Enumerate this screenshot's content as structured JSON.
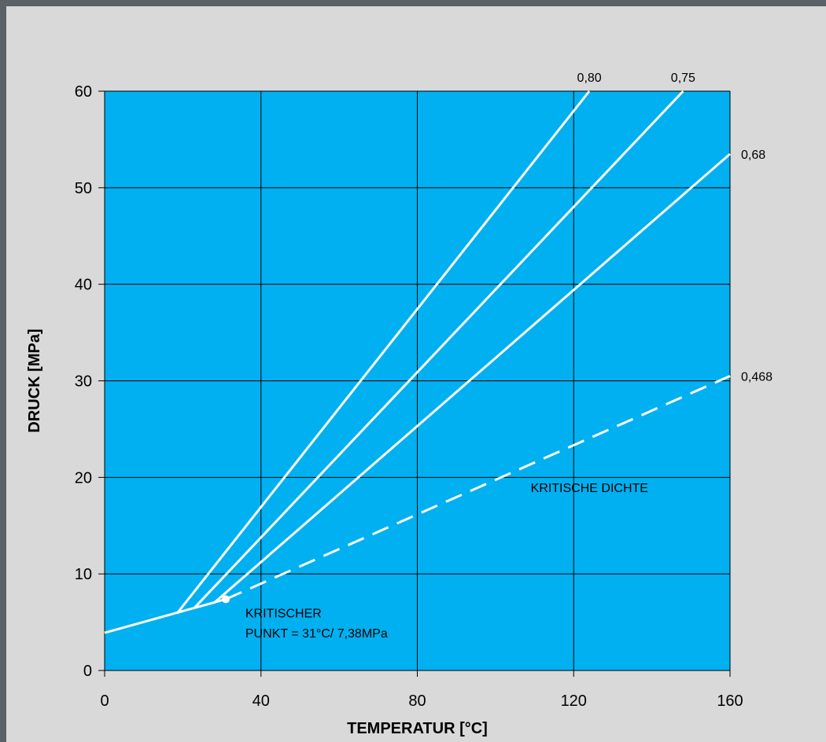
{
  "chart_data": {
    "type": "line",
    "title": "",
    "xlabel": "TEMPERATUR [°C]",
    "ylabel": "DRUCK [MPa]",
    "xlim": [
      0,
      160
    ],
    "ylim": [
      0,
      60
    ],
    "x_ticks": [
      0,
      40,
      80,
      120,
      160
    ],
    "y_ticks": [
      0,
      10,
      20,
      30,
      40,
      50,
      60
    ],
    "x_tick_labels": [
      "0",
      "40",
      "80",
      "120",
      "160"
    ],
    "y_tick_labels": [
      "0",
      "10",
      "20",
      "30",
      "40",
      "50",
      "60"
    ],
    "grid": true,
    "plot_background": "#00b0f0",
    "line_color": "#ffffff",
    "series": [
      {
        "label": "",
        "style": "solid",
        "points": [
          [
            0,
            3.9
          ],
          [
            31,
            7.38
          ]
        ]
      },
      {
        "label": "0,80",
        "style": "solid",
        "points": [
          [
            18.5,
            5.9
          ],
          [
            124,
            60
          ]
        ]
      },
      {
        "label": "0,75",
        "style": "solid",
        "points": [
          [
            23,
            6.5
          ],
          [
            148,
            60
          ]
        ]
      },
      {
        "label": "0,68",
        "style": "solid",
        "points": [
          [
            28,
            7.0
          ],
          [
            160,
            53.5
          ]
        ]
      },
      {
        "label": "0,468",
        "style": "dashed",
        "points": [
          [
            31,
            7.38
          ],
          [
            160,
            30.5
          ]
        ]
      }
    ],
    "series_labels": [
      {
        "text": "0,80",
        "x": 124,
        "y": 60
      },
      {
        "text": "0,75",
        "x": 148,
        "y": 60
      },
      {
        "text": "0,68",
        "x": 160,
        "y": 53.5
      },
      {
        "text": "0,468",
        "x": 160,
        "y": 30.5
      }
    ],
    "critical_point": {
      "x": 31,
      "y": 7.38
    },
    "annotations": [
      {
        "text": "KRITISCHE DICHTE",
        "x": 109,
        "y": 18.5
      },
      {
        "text": "KRITISCHER",
        "x": 36,
        "y": 5.5
      },
      {
        "text": "PUNKT = 31°C/ 7,38MPa",
        "x": 36,
        "y": 3.4
      }
    ]
  }
}
